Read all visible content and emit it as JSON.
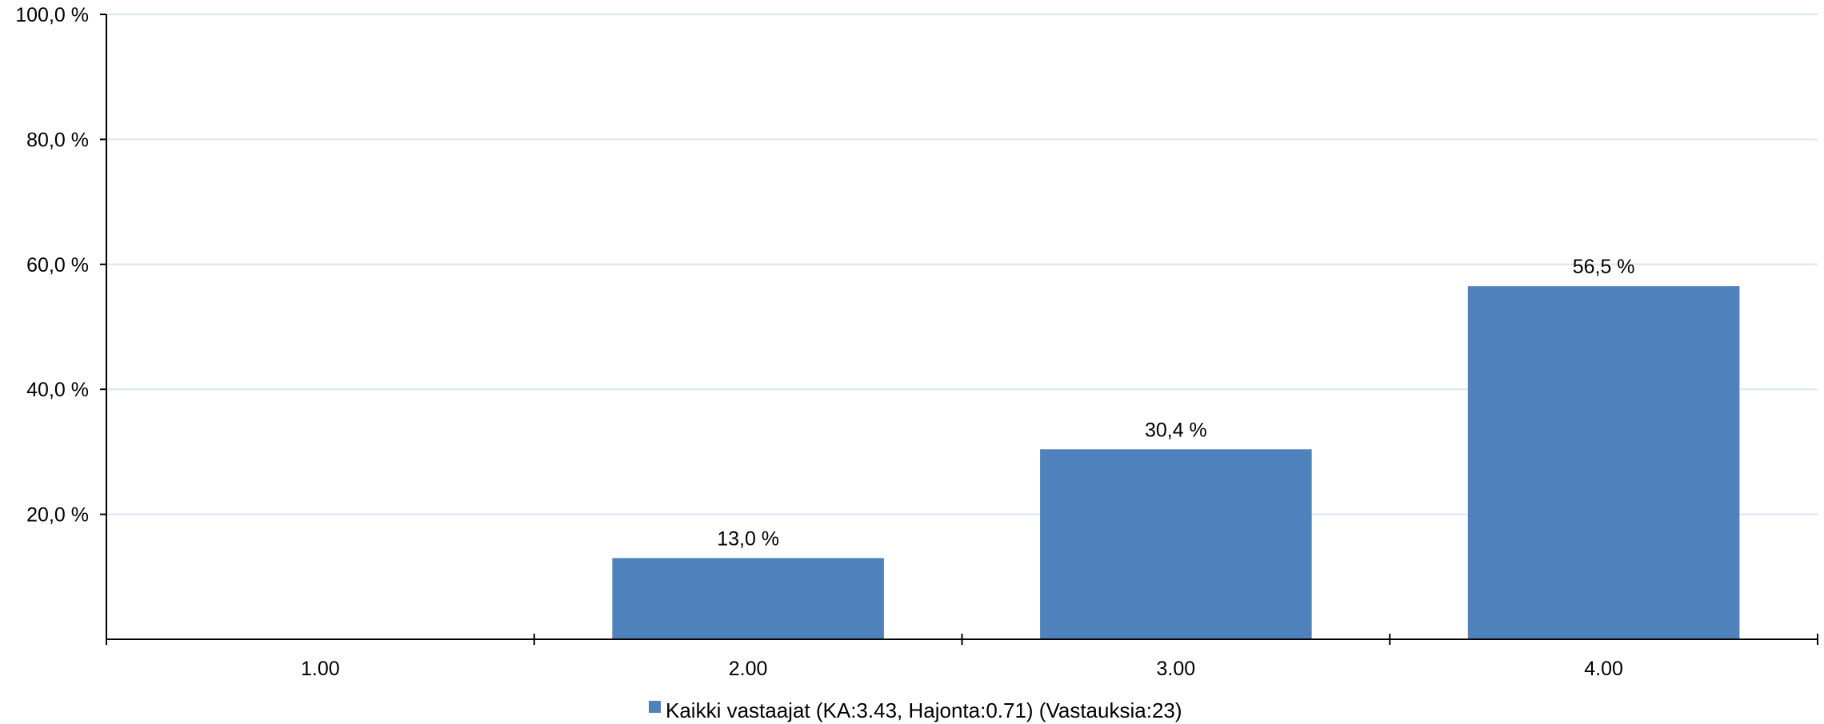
{
  "chart_data": {
    "type": "bar",
    "categories": [
      "1.00",
      "2.00",
      "3.00",
      "4.00"
    ],
    "series": [
      {
        "name": "Kaikki vastaajat (KA:3.43, Hajonta:0.71) (Vastauksia:23)",
        "values": [
          0,
          13.0,
          30.4,
          56.5
        ],
        "value_labels": [
          "",
          "13,0 %",
          "30,4 %",
          "56,5 %"
        ],
        "color": "#4f81bd"
      }
    ],
    "ylim": [
      0,
      100
    ],
    "yticks": [
      20,
      40,
      60,
      80,
      100
    ],
    "ytick_labels": [
      "20,0 %",
      "40,0 %",
      "60,0 %",
      "80,0 %",
      "100,0 %"
    ],
    "grid": true,
    "grid_color": "#dce6f2",
    "legend_position": "bottom",
    "title": "",
    "xlabel": "",
    "ylabel": ""
  }
}
